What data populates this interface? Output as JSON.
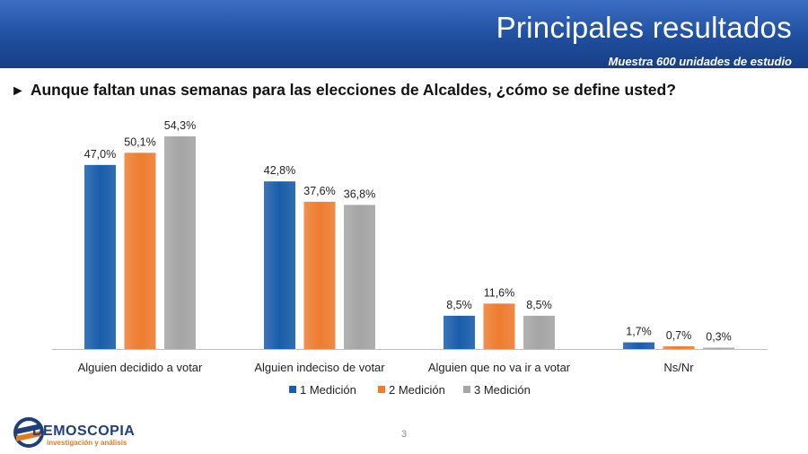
{
  "header": {
    "title": "Principales resultados",
    "subtitle": "Muestra 600 unidades de estudio"
  },
  "question": {
    "arrow": "►",
    "text": "Aunque faltan unas semanas para las elecciones de Alcaldes, ¿cómo se define usted?"
  },
  "page_number": "3",
  "logo": {
    "name": "DEMOSCOPIA",
    "tagline": "investigación y análisis",
    "icon": "demoscopia-logo-icon"
  },
  "colors": {
    "header": "#1f4e9e",
    "series1": "#1a5dab",
    "series2": "#ed7d31",
    "series3": "#a5a5a5"
  },
  "chart_data": {
    "type": "bar",
    "categories": [
      "Alguien decidido a votar",
      "Alguien indeciso de votar",
      "Alguien que no va ir a votar",
      "Ns/Nr"
    ],
    "series": [
      {
        "name": "1 Medición",
        "values": [
          47.0,
          42.8,
          8.5,
          1.7
        ],
        "labels": [
          "47,0%",
          "42,8%",
          "8,5%",
          "1,7%"
        ],
        "color": "#1a5dab"
      },
      {
        "name": "2 Medición",
        "values": [
          50.1,
          37.6,
          11.6,
          0.7
        ],
        "labels": [
          "50,1%",
          "37,6%",
          "11,6%",
          "0,7%"
        ],
        "color": "#ed7d31"
      },
      {
        "name": "3 Medición",
        "values": [
          54.3,
          36.8,
          8.5,
          0.3
        ],
        "labels": [
          "54,3%",
          "36,8%",
          "8,5%",
          "0,3%"
        ],
        "color": "#a5a5a5"
      }
    ],
    "ylim": [
      0,
      54.3
    ],
    "grid": false,
    "legend_position": "bottom"
  }
}
